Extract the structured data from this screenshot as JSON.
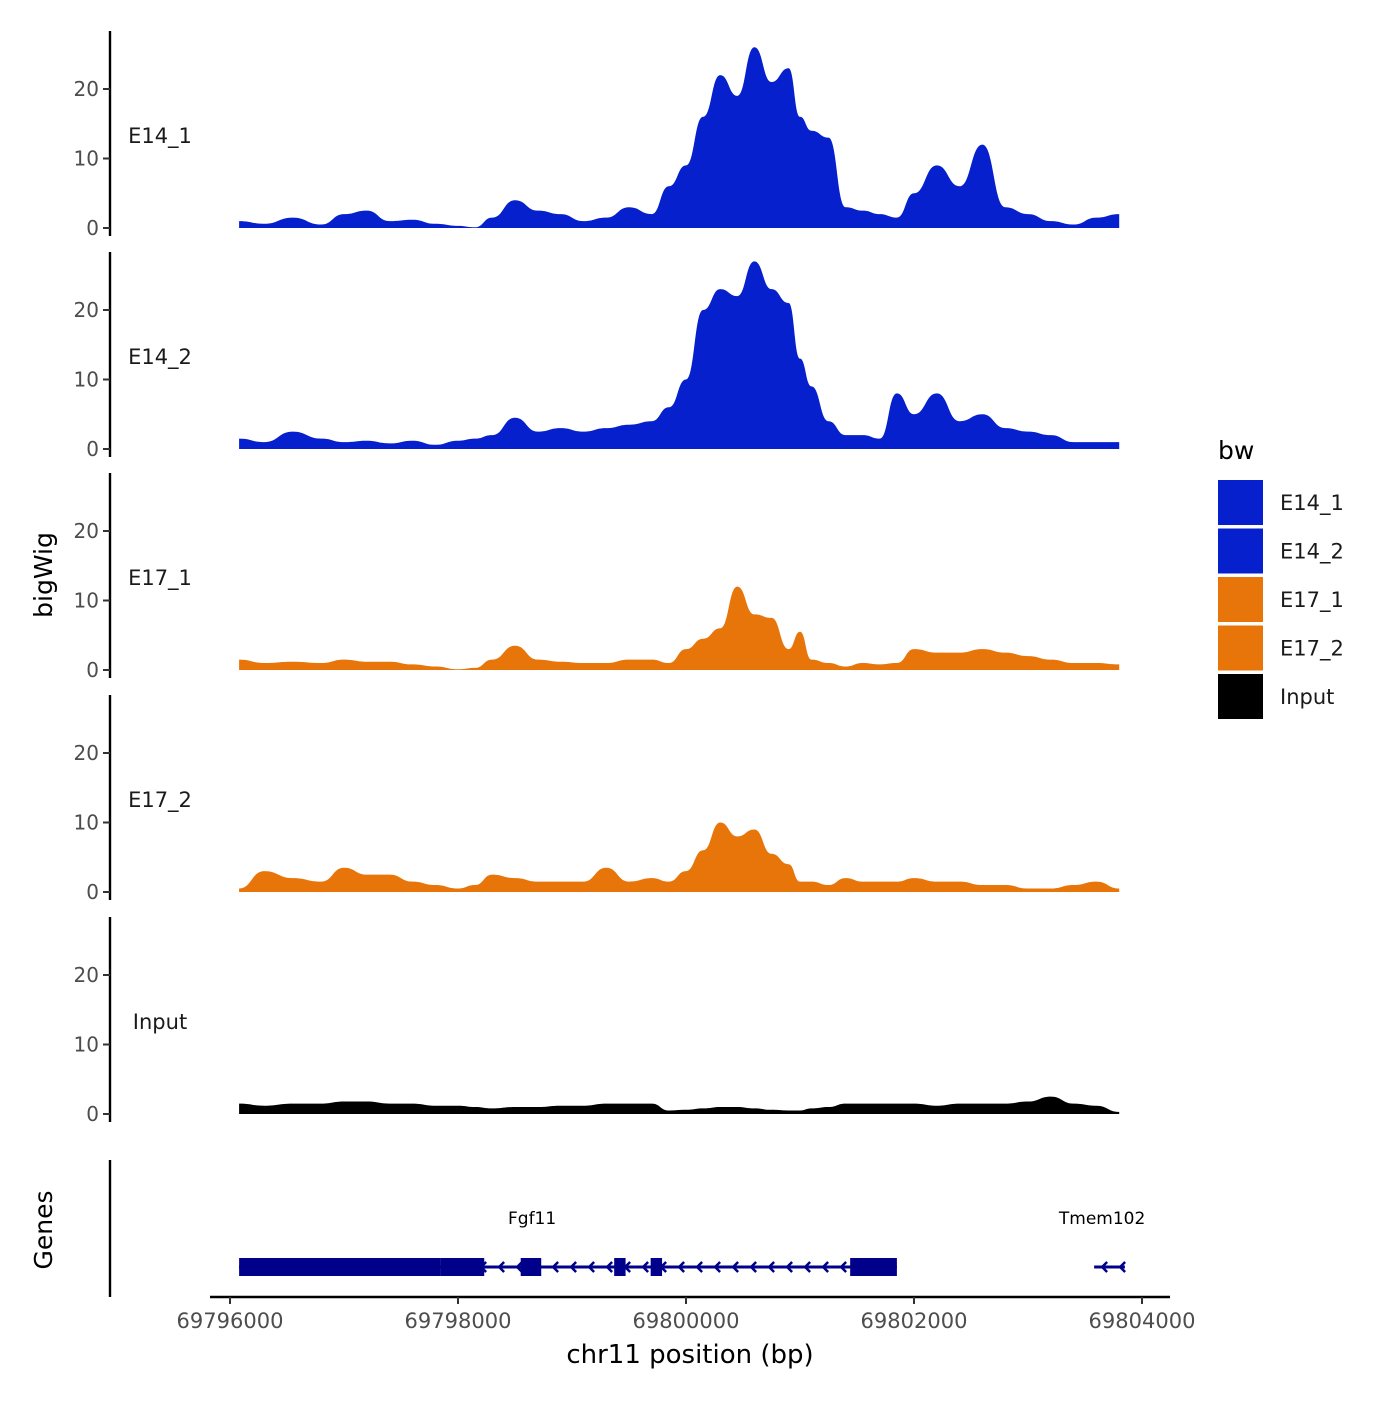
{
  "chart_data": {
    "type": "area",
    "ylabel": "bigWig",
    "xlabel": "chr11 position (bp)",
    "genes_label": "Genes",
    "xlim": [
      69795700,
      69804250
    ],
    "ylim": [
      0,
      27
    ],
    "x_ticks": [
      69796000,
      69798000,
      69800000,
      69802000,
      69804000
    ],
    "x_tick_labels": [
      "69796000",
      "69798000",
      "69800000",
      "69802000",
      "69804000"
    ],
    "y_ticks": [
      0,
      10,
      20
    ],
    "y_tick_labels": [
      "0",
      "10",
      "20"
    ],
    "legend": {
      "title": "bw",
      "entries": [
        {
          "label": "E14_1",
          "color": "#0520CC"
        },
        {
          "label": "E14_2",
          "color": "#0520CC"
        },
        {
          "label": "E17_1",
          "color": "#E8750A"
        },
        {
          "label": "E17_2",
          "color": "#E8750A"
        },
        {
          "label": "Input",
          "color": "#000000"
        }
      ]
    },
    "x": [
      69796080,
      69796300,
      69796550,
      69796800,
      69797000,
      69797200,
      69797400,
      69797600,
      69797800,
      69798000,
      69798150,
      69798300,
      69798500,
      69798700,
      69798900,
      69799100,
      69799300,
      69799500,
      69799700,
      69799850,
      69800000,
      69800150,
      69800300,
      69800450,
      69800600,
      69800750,
      69800900,
      69801000,
      69801100,
      69801250,
      69801400,
      69801550,
      69801700,
      69801850,
      69802000,
      69802200,
      69802400,
      69802600,
      69802800,
      69803000,
      69803200,
      69803400,
      69803600,
      69803800
    ],
    "series": [
      {
        "name": "E14_1",
        "color": "#0520CC",
        "values": [
          1.0,
          0.6,
          1.5,
          0.5,
          2.0,
          2.5,
          1.0,
          1.2,
          0.6,
          0.3,
          0.1,
          1.5,
          4.0,
          2.5,
          2.0,
          1.0,
          1.5,
          3.0,
          2.0,
          6.0,
          9.0,
          16.0,
          22.0,
          19.0,
          26.0,
          21.0,
          23.0,
          16.0,
          14.0,
          13.0,
          3.0,
          2.5,
          2.0,
          1.5,
          5.0,
          9.0,
          6.0,
          12.0,
          3.0,
          2.0,
          1.0,
          0.5,
          1.5,
          2.0
        ]
      },
      {
        "name": "E14_2",
        "color": "#0520CC",
        "values": [
          1.5,
          1.0,
          2.5,
          1.5,
          1.0,
          1.2,
          0.8,
          1.2,
          0.6,
          1.2,
          1.5,
          2.0,
          4.5,
          2.5,
          3.0,
          2.5,
          3.0,
          3.5,
          4.0,
          6.0,
          10.0,
          20.0,
          23.0,
          22.0,
          27.0,
          23.0,
          21.0,
          13.0,
          9.0,
          4.0,
          2.0,
          2.0,
          1.5,
          8.0,
          5.0,
          8.0,
          4.0,
          5.0,
          3.0,
          2.5,
          2.0,
          1.0,
          1.0,
          1.0
        ]
      },
      {
        "name": "E17_1",
        "color": "#E8750A",
        "values": [
          1.5,
          1.0,
          1.2,
          1.0,
          1.5,
          1.2,
          1.2,
          0.8,
          0.5,
          0.1,
          0.3,
          1.5,
          3.5,
          1.5,
          1.2,
          1.0,
          1.0,
          1.5,
          1.5,
          1.0,
          3.0,
          4.5,
          6.0,
          12.0,
          8.0,
          7.5,
          3.0,
          5.5,
          1.5,
          1.0,
          0.5,
          1.0,
          0.8,
          1.0,
          3.0,
          2.5,
          2.5,
          3.0,
          2.5,
          2.0,
          1.5,
          1.0,
          1.0,
          0.8
        ]
      },
      {
        "name": "E17_2",
        "color": "#E8750A",
        "values": [
          0.5,
          3.0,
          2.0,
          1.5,
          3.5,
          2.5,
          2.5,
          1.5,
          1.0,
          0.5,
          1.0,
          2.5,
          2.0,
          1.5,
          1.5,
          1.5,
          3.5,
          1.5,
          2.0,
          1.5,
          3.0,
          6.0,
          10.0,
          8.0,
          9.0,
          5.5,
          4.0,
          1.5,
          1.5,
          1.0,
          2.0,
          1.5,
          1.5,
          1.5,
          2.0,
          1.5,
          1.5,
          1.0,
          1.0,
          0.5,
          0.5,
          1.0,
          1.5,
          0.5
        ]
      },
      {
        "name": "Input",
        "color": "#000000",
        "values": [
          1.5,
          1.2,
          1.5,
          1.5,
          1.8,
          1.8,
          1.5,
          1.5,
          1.2,
          1.2,
          1.0,
          0.8,
          1.0,
          1.0,
          1.2,
          1.2,
          1.5,
          1.5,
          1.5,
          0.5,
          0.6,
          0.8,
          1.0,
          1.0,
          0.8,
          0.6,
          0.5,
          0.5,
          0.8,
          1.0,
          1.5,
          1.5,
          1.5,
          1.5,
          1.5,
          1.2,
          1.5,
          1.5,
          1.5,
          1.8,
          2.5,
          1.5,
          1.2,
          0.3
        ]
      }
    ],
    "genes": [
      {
        "name": "Fgf11",
        "start": 69796080,
        "end": 69801850,
        "strand": "-",
        "exons": [
          [
            69796080,
            69797850
          ],
          [
            69797850,
            69798230
          ],
          [
            69798550,
            69798730
          ],
          [
            69799370,
            69799470
          ],
          [
            69799690,
            69799790
          ],
          [
            69801440,
            69801850
          ]
        ]
      },
      {
        "name": "Tmem102",
        "start": 69803580,
        "end": 69803850,
        "strand": "-",
        "exons": []
      }
    ]
  }
}
